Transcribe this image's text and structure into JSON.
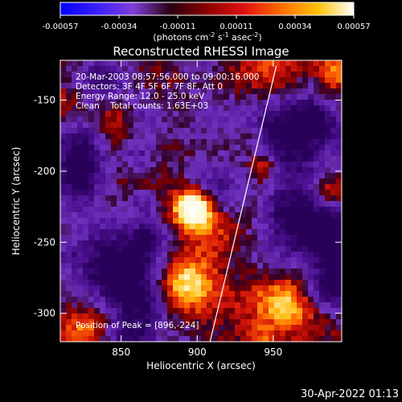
{
  "colorbar": {
    "ticks": [
      "-0.00057",
      "-0.00034",
      "-0.00011",
      "0.00011",
      "0.00034",
      "0.00057"
    ],
    "units_main": "(photons cm",
    "units_exp1": "-2",
    "units_mid": " s",
    "units_exp2": "-1",
    "units_end": " asec",
    "units_exp3": "-2",
    "units_close": ")",
    "colors": [
      "#0000ff",
      "#3a1fff",
      "#7f3fd8",
      "#2a0010",
      "#8b0000",
      "#e01010",
      "#ff6a00",
      "#ffc000",
      "#ffffff"
    ]
  },
  "footer_timestamp": "30-Apr-2022 01:13",
  "chart_data": {
    "type": "heatmap",
    "title": "Reconstructed RHESSI Image",
    "xlabel": "Heliocentric X (arcsec)",
    "ylabel": "Heliocentric Y (arcsec)",
    "xlim": [
      810,
      995
    ],
    "ylim": [
      -320,
      -122
    ],
    "x_ticks": [
      850,
      900,
      950
    ],
    "y_ticks": [
      -150,
      -200,
      -250,
      -300
    ],
    "info_lines": [
      "20-Mar-2003 08:57:56.000 to 09:00:16.000",
      "Detectors: 3F 4F 5F 6F 7F 8F, Att 0",
      "Energy Range: 12.0 - 25.0 keV",
      "Clean    Total counts: 1.63E+03"
    ],
    "peak_label": "Position of Peak = [896,-224]",
    "peak": [
      896,
      -224
    ],
    "value_range": [
      -0.00057,
      0.00057
    ],
    "limb_line": [
      [
        908,
        -322
      ],
      [
        952,
        -126
      ]
    ]
  }
}
